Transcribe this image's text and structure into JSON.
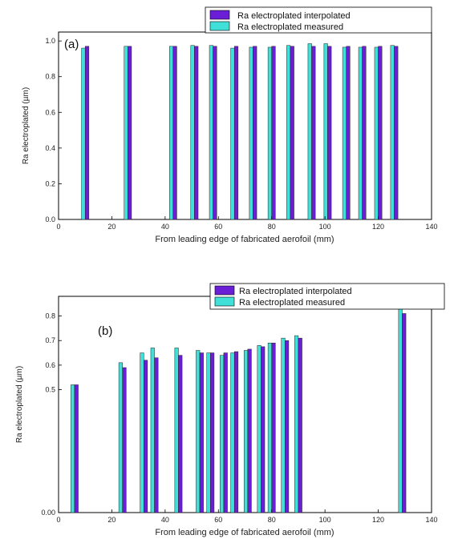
{
  "colors": {
    "interpolated": "#6a1fd6",
    "measured": "#40e0d8"
  },
  "chart_data": [
    {
      "type": "bar",
      "panel_label": "(a)",
      "xlabel": "From leading edge of fabricated aerofoil (mm)",
      "ylabel": "Ra electroplated (µm)",
      "xlim": [
        0,
        140
      ],
      "ylim": [
        0.0,
        1.05
      ],
      "xticks": [
        "0",
        "20",
        "40",
        "60",
        "80",
        "100",
        "120",
        "140"
      ],
      "yticks": [
        "0.0",
        "0.2",
        "0.4",
        "0.6",
        "0.8",
        "1.0"
      ],
      "x": [
        10,
        26,
        43,
        51,
        58,
        66,
        73,
        80,
        87,
        95,
        101,
        108,
        114,
        120,
        126
      ],
      "series": [
        {
          "name": "Ra electroplated interpolated",
          "values": [
            0.97,
            0.97,
            0.97,
            0.97,
            0.97,
            0.97,
            0.97,
            0.97,
            0.97,
            0.97,
            0.97,
            0.97,
            0.97,
            0.97,
            0.97
          ]
        },
        {
          "name": "Ra electroplated measured",
          "values": [
            0.96,
            0.97,
            0.97,
            0.975,
            0.975,
            0.96,
            0.965,
            0.965,
            0.975,
            0.985,
            0.985,
            0.965,
            0.965,
            0.965,
            0.975
          ]
        }
      ],
      "grid": false,
      "legend": "top-right"
    },
    {
      "type": "bar",
      "panel_label": "(b)",
      "xlabel": "From leading edge of fabricated aerofoil (mm)",
      "ylabel": "Ra electroplated (µm)",
      "xlim": [
        0,
        140
      ],
      "ylim": [
        0.0,
        0.88
      ],
      "xticks": [
        "0",
        "20",
        "40",
        "60",
        "80",
        "100",
        "120",
        "140"
      ],
      "yticks": [
        "0.00",
        "0.5",
        "0.6",
        "0.7",
        "0.8"
      ],
      "x": [
        6,
        24,
        32,
        36,
        45,
        53,
        57,
        62,
        66,
        71,
        76,
        80,
        85,
        90,
        129
      ],
      "series": [
        {
          "name": "Ra electroplated interpolated",
          "values": [
            0.52,
            0.59,
            0.62,
            0.63,
            0.64,
            0.65,
            0.65,
            0.65,
            0.655,
            0.665,
            0.675,
            0.69,
            0.7,
            0.71,
            0.81
          ]
        },
        {
          "name": "Ra electroplated measured",
          "values": [
            0.52,
            0.61,
            0.65,
            0.67,
            0.67,
            0.66,
            0.65,
            0.64,
            0.65,
            0.66,
            0.68,
            0.69,
            0.71,
            0.72,
            0.83
          ]
        }
      ],
      "grid": false,
      "legend": "top-right"
    }
  ]
}
